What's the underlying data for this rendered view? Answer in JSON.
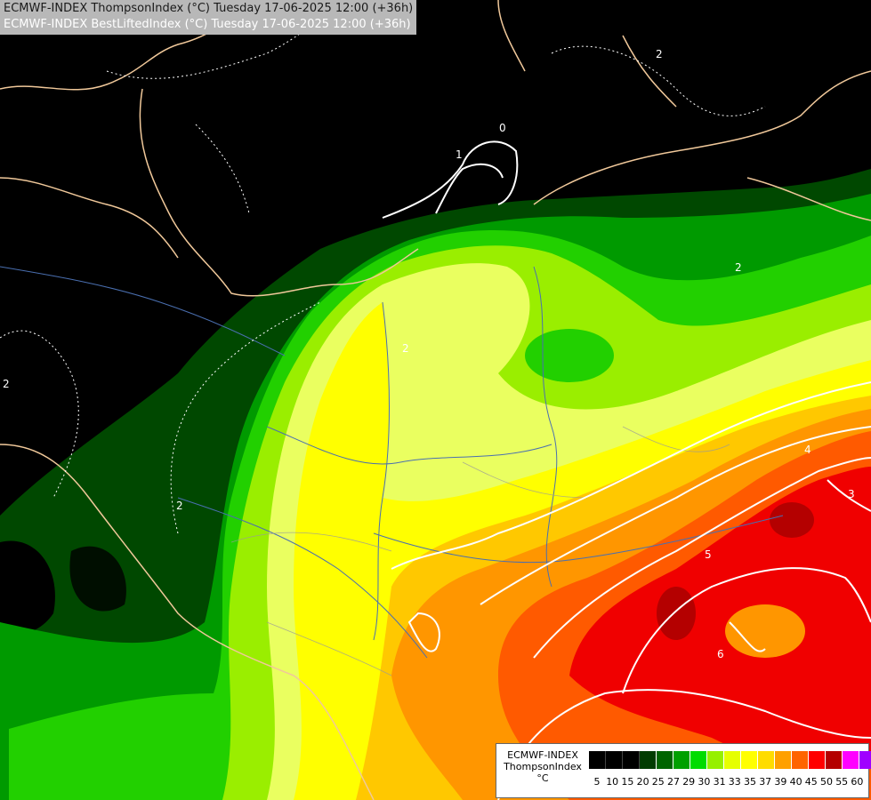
{
  "header": {
    "line1": "ECMWF-INDEX ThompsonIndex (°C) Tuesday 17-06-2025 12:00 (+36h)",
    "line2": "ECMWF-INDEX BestLiftedIndex (°C) Tuesday 17-06-2025 12:00 (+36h)",
    "line1_color": "#1a1a1a",
    "line2_color": "#ffffff"
  },
  "legend": {
    "model": "ECMWF-INDEX",
    "parameter": "ThompsonIndex",
    "unit": "°C",
    "ticks": [
      "5",
      "10",
      "15",
      "20",
      "25",
      "27",
      "29",
      "30",
      "31",
      "33",
      "35",
      "37",
      "39",
      "40",
      "45",
      "50",
      "55",
      "60"
    ],
    "colors": [
      "#000000",
      "#000000",
      "#000000",
      "#003c00",
      "#006400",
      "#00a000",
      "#00dc00",
      "#96f000",
      "#e6ff00",
      "#ffff00",
      "#ffdc00",
      "#ffa000",
      "#ff6400",
      "#ff0000",
      "#b40000",
      "#ff00ff",
      "#a000ff",
      "#0000ff"
    ]
  },
  "contour_labels": [
    "2",
    "2",
    "2",
    "2",
    "2",
    "4",
    "5",
    "3",
    "6",
    "0",
    "1"
  ],
  "colors": {
    "border": "#f0c89a",
    "river": "#4a6fb0",
    "contour": "#ffffff"
  }
}
